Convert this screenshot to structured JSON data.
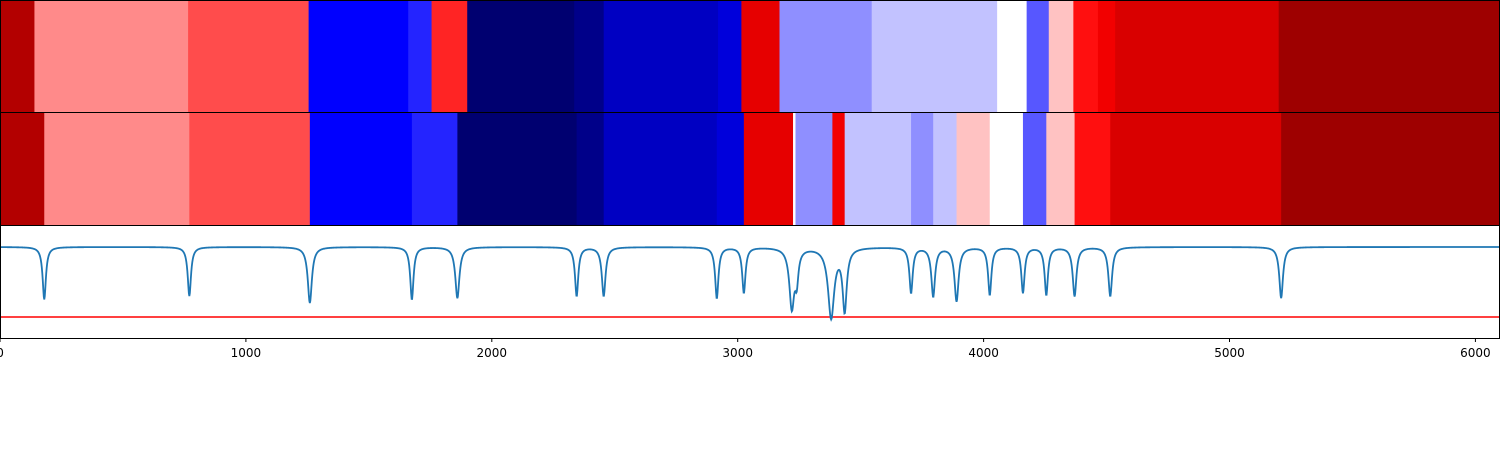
{
  "chart_data": {
    "type": "heatmap",
    "title": "",
    "xlabel": "",
    "ylabel": "",
    "xlim": [
      0,
      6100
    ],
    "x_ticks": [
      0,
      1000,
      2000,
      3000,
      4000,
      5000,
      6000
    ],
    "x_tick_labels": [
      "0",
      "1000",
      "2000",
      "3000",
      "4000",
      "5000",
      "6000"
    ],
    "colormap": "seismic",
    "value_range": [
      -1,
      1
    ],
    "rows": [
      {
        "segments": [
          {
            "start": 0,
            "end": 140,
            "value": 0.8
          },
          {
            "start": 140,
            "end": 765,
            "value": 0.23
          },
          {
            "start": 765,
            "end": 1255,
            "value": 0.35
          },
          {
            "start": 1255,
            "end": 1660,
            "value": -0.5
          },
          {
            "start": 1660,
            "end": 1755,
            "value": -0.43
          },
          {
            "start": 1755,
            "end": 1900,
            "value": 0.43
          },
          {
            "start": 1900,
            "end": 2335,
            "value": -0.9
          },
          {
            "start": 2335,
            "end": 2455,
            "value": -0.83
          },
          {
            "start": 2455,
            "end": 2920,
            "value": -0.67
          },
          {
            "start": 2920,
            "end": 3015,
            "value": -0.6
          },
          {
            "start": 3015,
            "end": 3170,
            "value": 0.6
          },
          {
            "start": 3170,
            "end": 3545,
            "value": -0.22
          },
          {
            "start": 3545,
            "end": 4055,
            "value": -0.12
          },
          {
            "start": 4055,
            "end": 4175,
            "value": 0.0
          },
          {
            "start": 4175,
            "end": 4265,
            "value": -0.33
          },
          {
            "start": 4265,
            "end": 4365,
            "value": 0.12
          },
          {
            "start": 4365,
            "end": 4465,
            "value": 0.47
          },
          {
            "start": 4465,
            "end": 4535,
            "value": 0.55
          },
          {
            "start": 4535,
            "end": 5200,
            "value": 0.65
          },
          {
            "start": 5200,
            "end": 6100,
            "value": 0.88
          }
        ]
      },
      {
        "segments": [
          {
            "start": 0,
            "end": 180,
            "value": 0.8
          },
          {
            "start": 180,
            "end": 770,
            "value": 0.23
          },
          {
            "start": 770,
            "end": 1260,
            "value": 0.35
          },
          {
            "start": 1260,
            "end": 1675,
            "value": -0.5
          },
          {
            "start": 1675,
            "end": 1860,
            "value": -0.43
          },
          {
            "start": 1860,
            "end": 2345,
            "value": -0.9
          },
          {
            "start": 2345,
            "end": 2455,
            "value": -0.83
          },
          {
            "start": 2455,
            "end": 2915,
            "value": -0.67
          },
          {
            "start": 2915,
            "end": 3025,
            "value": -0.6
          },
          {
            "start": 3025,
            "end": 3225,
            "value": 0.6
          },
          {
            "start": 3225,
            "end": 3235,
            "value": 0.0
          },
          {
            "start": 3235,
            "end": 3385,
            "value": -0.22
          },
          {
            "start": 3385,
            "end": 3435,
            "value": 0.55
          },
          {
            "start": 3435,
            "end": 3705,
            "value": -0.12
          },
          {
            "start": 3705,
            "end": 3795,
            "value": -0.22
          },
          {
            "start": 3795,
            "end": 3890,
            "value": -0.12
          },
          {
            "start": 3890,
            "end": 4025,
            "value": 0.12
          },
          {
            "start": 4025,
            "end": 4160,
            "value": 0.0
          },
          {
            "start": 4160,
            "end": 4255,
            "value": -0.33
          },
          {
            "start": 4255,
            "end": 4370,
            "value": 0.12
          },
          {
            "start": 4370,
            "end": 4515,
            "value": 0.47
          },
          {
            "start": 4515,
            "end": 5210,
            "value": 0.65
          },
          {
            "start": 5210,
            "end": 6100,
            "value": 0.88
          }
        ]
      }
    ],
    "signal": {
      "baseline": 0.0,
      "threshold": 1.0,
      "ylim": [
        -1.3,
        0.3
      ],
      "dips": [
        {
          "x": 180,
          "depth": 0.75,
          "width": 8
        },
        {
          "x": 770,
          "depth": 0.7,
          "width": 8
        },
        {
          "x": 1260,
          "depth": 0.8,
          "width": 10
        },
        {
          "x": 1675,
          "depth": 0.75,
          "width": 8
        },
        {
          "x": 1860,
          "depth": 0.73,
          "width": 10
        },
        {
          "x": 2345,
          "depth": 0.7,
          "width": 8
        },
        {
          "x": 2455,
          "depth": 0.7,
          "width": 9
        },
        {
          "x": 2915,
          "depth": 0.73,
          "width": 8
        },
        {
          "x": 3025,
          "depth": 0.65,
          "width": 8
        },
        {
          "x": 3220,
          "depth": 0.85,
          "width": 12
        },
        {
          "x": 3240,
          "depth": 0.4,
          "width": 8
        },
        {
          "x": 3380,
          "depth": 1.0,
          "width": 15
        },
        {
          "x": 3435,
          "depth": 0.88,
          "width": 10
        },
        {
          "x": 3705,
          "depth": 0.65,
          "width": 8
        },
        {
          "x": 3795,
          "depth": 0.7,
          "width": 9
        },
        {
          "x": 3890,
          "depth": 0.77,
          "width": 10
        },
        {
          "x": 4025,
          "depth": 0.68,
          "width": 8
        },
        {
          "x": 4160,
          "depth": 0.65,
          "width": 8
        },
        {
          "x": 4255,
          "depth": 0.68,
          "width": 8
        },
        {
          "x": 4370,
          "depth": 0.7,
          "width": 9
        },
        {
          "x": 4515,
          "depth": 0.7,
          "width": 9
        },
        {
          "x": 5210,
          "depth": 0.73,
          "width": 9
        }
      ]
    }
  }
}
